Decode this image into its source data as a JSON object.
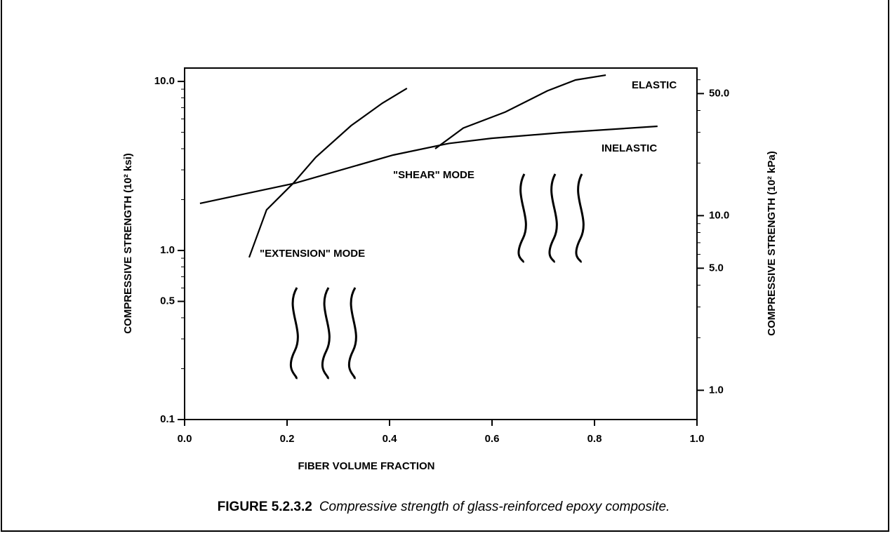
{
  "chart_data": {
    "type": "line",
    "xlabel": "FIBER VOLUME FRACTION",
    "ylabel": "COMPRESSIVE STRENGTH  (10² ksi)",
    "y2label": "COMPRESSIVE STRENGTH  (10² kPa)",
    "xlim": [
      0,
      1
    ],
    "xticks": [
      {
        "value": 0,
        "label": "0.0"
      },
      {
        "value": 0.2,
        "label": "0.2"
      },
      {
        "value": 0.4,
        "label": "0.4"
      },
      {
        "value": 0.6,
        "label": "0.6"
      },
      {
        "value": 0.8,
        "label": "0.8"
      },
      {
        "value": 1,
        "label": "1.0"
      }
    ],
    "ylim": [
      0.1,
      12
    ],
    "yscale": "log",
    "yticks": [
      0.1,
      0.5,
      {
        "value": 1,
        "label": "1.0"
      },
      {
        "value": 10,
        "label": "10.0"
      }
    ],
    "yminorticks": [
      0.2,
      0.3,
      0.4,
      0.6,
      0.7,
      0.8,
      0.9,
      2,
      3,
      4,
      5,
      6,
      7,
      8,
      9
    ],
    "y2lim": [
      0.68,
      70
    ],
    "y2ticks": [
      {
        "value": 1,
        "label": "1.0"
      },
      {
        "value": 5,
        "label": "5.0"
      },
      {
        "value": 10,
        "label": "10.0"
      },
      {
        "value": 50,
        "label": "50.0"
      }
    ],
    "y2minorticks": [
      2,
      3,
      4,
      6,
      7,
      8,
      9,
      20,
      30,
      40,
      60
    ],
    "grid": false,
    "series": [
      {
        "name": "\"EXTENSION\" MODE",
        "color": "#000000",
        "x": [
          0.126,
          0.16,
          0.212,
          0.256,
          0.325,
          0.386,
          0.434
        ],
        "values": [
          0.91,
          1.74,
          2.5,
          3.56,
          5.48,
          7.44,
          9.1
        ]
      },
      {
        "name": "INELASTIC",
        "color": "#000000",
        "x": [
          0.03,
          0.215,
          0.407,
          0.516,
          0.599,
          0.736,
          0.923
        ],
        "values": [
          1.9,
          2.5,
          3.67,
          4.3,
          4.61,
          4.98,
          5.43
        ]
      },
      {
        "name": "ELASTIC",
        "color": "#000000",
        "x": [
          0.489,
          0.544,
          0.626,
          0.708,
          0.763,
          0.822
        ],
        "values": [
          4.0,
          5.3,
          6.6,
          8.8,
          10.2,
          10.9
        ]
      }
    ],
    "annotations": [
      "\"SHEAR\" MODE"
    ],
    "caption_label": "FIGURE 5.2.3.2",
    "caption_text": "Compressive strength of glass-reinforced epoxy composite."
  }
}
